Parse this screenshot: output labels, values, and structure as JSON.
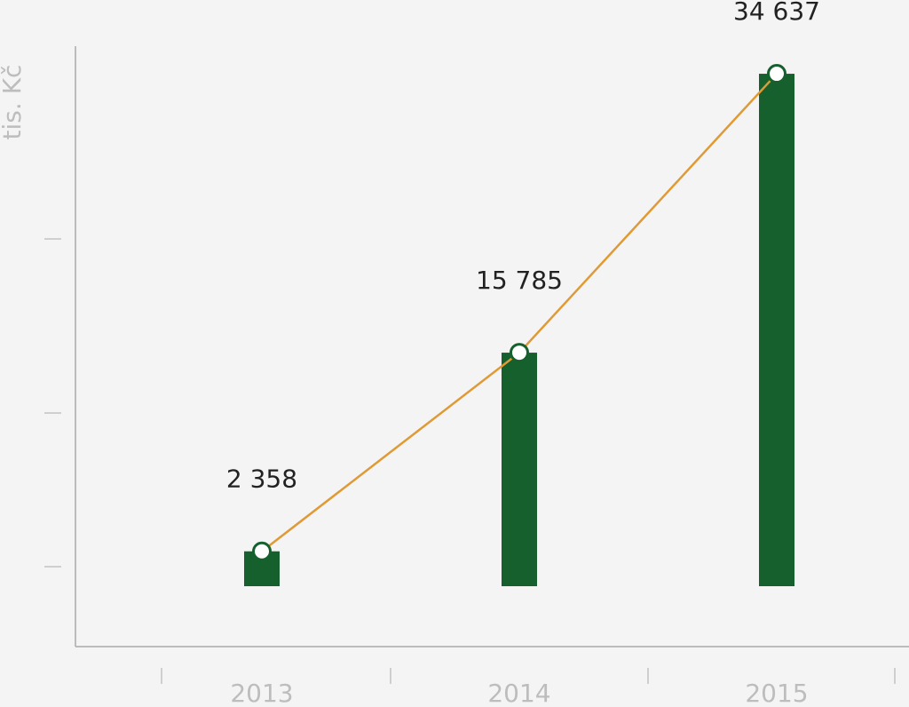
{
  "chart_data": {
    "type": "bar",
    "y_label": "tis. Kč",
    "categories": [
      "2013",
      "2014",
      "2015"
    ],
    "values": [
      2358,
      15785,
      34637
    ],
    "value_labels": [
      "2 358",
      "15 785",
      "34 637"
    ],
    "color": "#16602e",
    "line_color": "#e09a35",
    "ylim": [
      0,
      35000
    ]
  }
}
